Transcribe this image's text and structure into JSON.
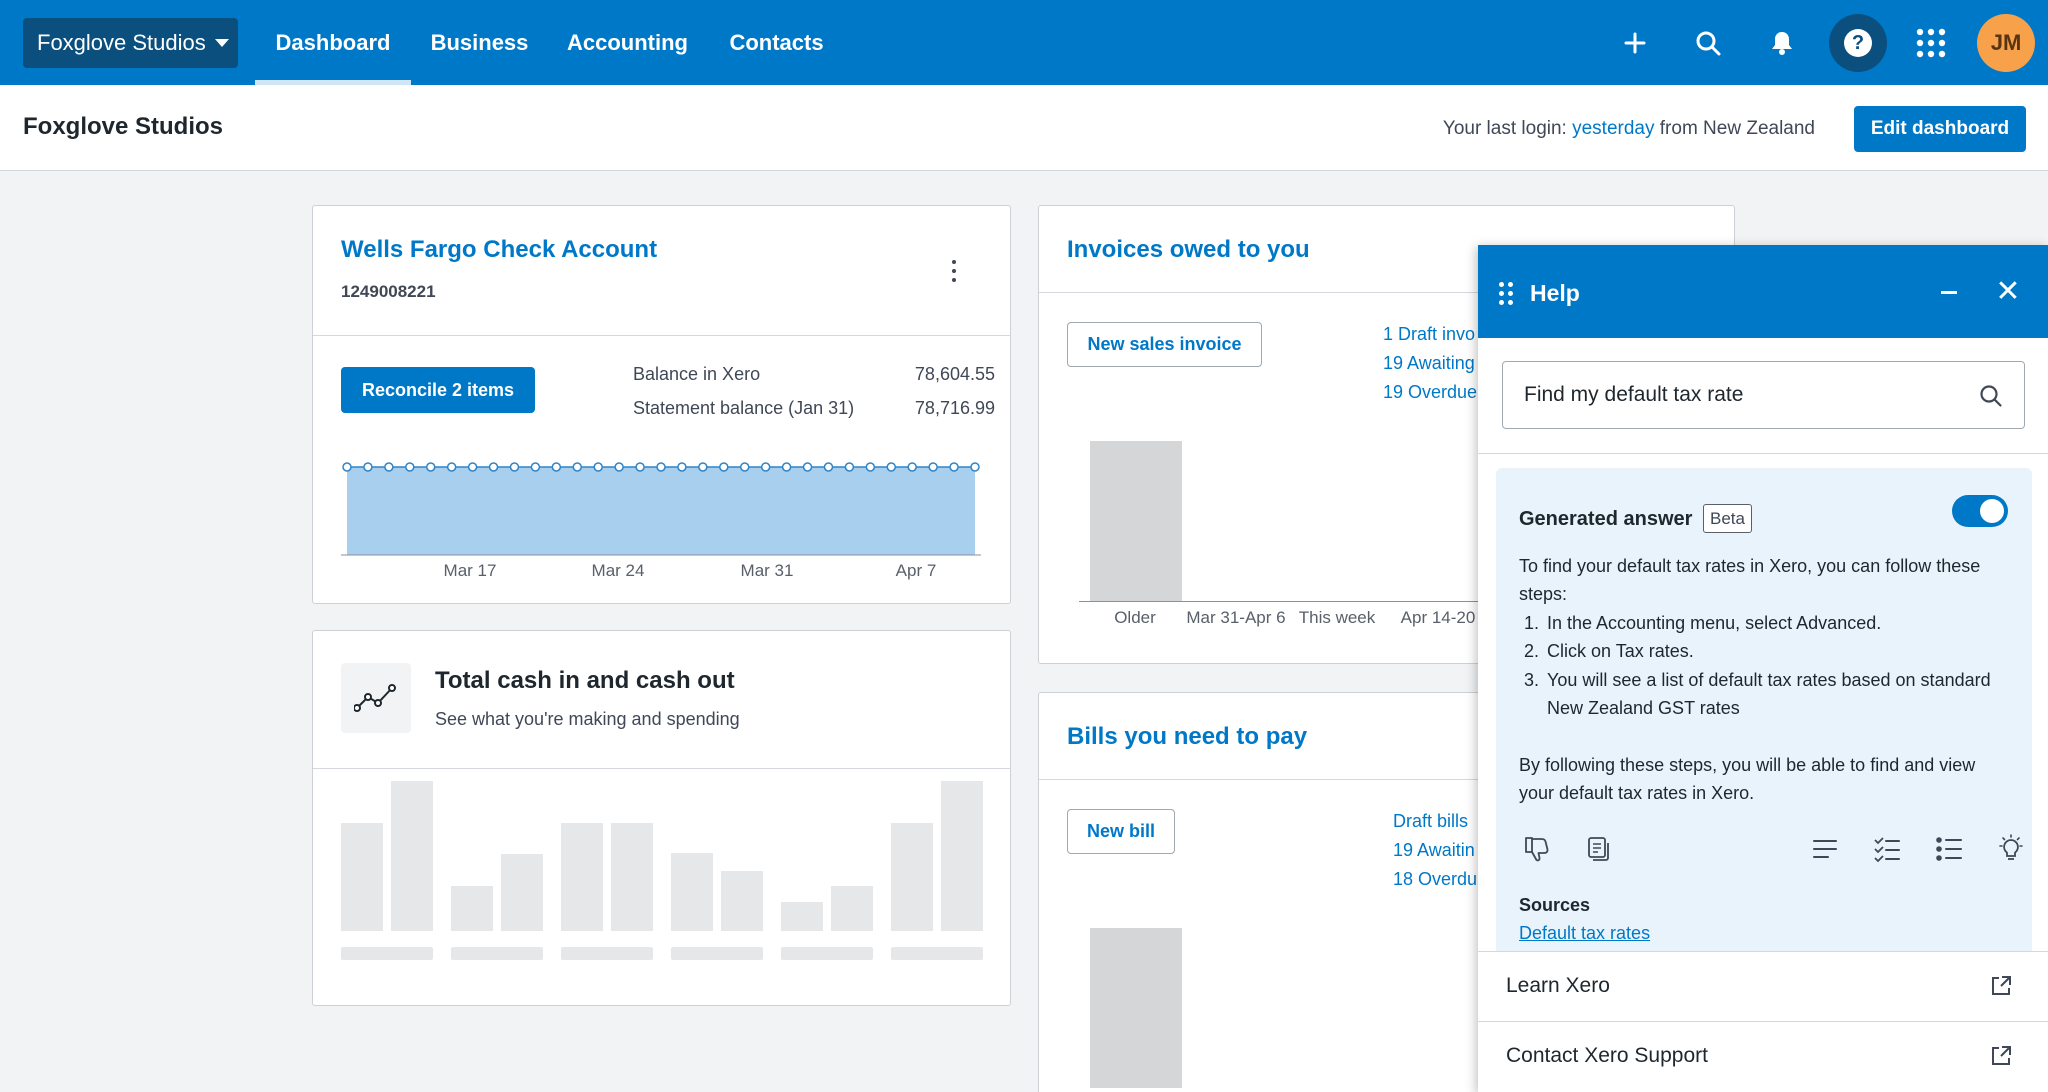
{
  "nav": {
    "org_name": "Foxglove Studios",
    "tabs": [
      "Dashboard",
      "Business",
      "Accounting",
      "Contacts"
    ],
    "active_tab": "Dashboard",
    "help_glyph": "?",
    "avatar_initials": "JM",
    "icons": [
      "plus-icon",
      "search-icon",
      "bell-icon",
      "help-icon",
      "app-grid-icon"
    ]
  },
  "header": {
    "title": "Foxglove Studios",
    "last_login_prefix": "Your last login:",
    "last_login_link": "yesterday",
    "last_login_suffix": "from New Zealand",
    "edit_button": "Edit dashboard"
  },
  "bank_card": {
    "title": "Wells Fargo Check Account",
    "account_number": "1249008221",
    "reconcile_button": "Reconcile 2 items",
    "balance_label": "Balance in Xero",
    "balance_value": "78,604.55",
    "statement_label": "Statement balance (Jan 31)",
    "statement_value": "78,716.99",
    "axis_labels": [
      "Mar 17",
      "Mar 24",
      "Mar 31",
      "Apr 7"
    ]
  },
  "cash_card": {
    "title": "Total cash in and cash out",
    "subtitle": "See what you're making and spending"
  },
  "invoices_card": {
    "title": "Invoices owed to you",
    "new_button": "New sales invoice",
    "links": [
      "1 Draft invo",
      "19 Awaiting",
      "19 Overdue"
    ],
    "axis_labels": [
      "Older",
      "Mar 31-Apr 6",
      "This week",
      "Apr 14-20"
    ]
  },
  "bills_card": {
    "title": "Bills you need to pay",
    "new_button": "New bill",
    "links": [
      "Draft bills",
      "19 Awaitin",
      "18 Overdu"
    ]
  },
  "help": {
    "title": "Help",
    "close_glyph": "✕",
    "search_value": "Find my default tax rate",
    "answer_title": "Generated answer",
    "beta_label": "Beta",
    "toggle_on": true,
    "intro": "To find your default tax rates in Xero, you can follow these steps:",
    "steps": [
      {
        "num": "1.",
        "text": "In the Accounting menu, select Advanced."
      },
      {
        "num": "2.",
        "text": "Click on Tax rates."
      },
      {
        "num": "3.",
        "text": "You will see a list of default tax rates based on standard New Zealand GST rates"
      }
    ],
    "conclusion": "By following these steps, you will be able to find and view your default tax rates in Xero.",
    "answer_icons": [
      "thumbs-down-icon",
      "copy-icon",
      "paragraph-icon",
      "checklist-icon",
      "bullet-list-icon",
      "lightbulb-icon"
    ],
    "sources_title": "Sources",
    "sources_link": "Default tax rates",
    "footer_items": [
      "Learn Xero",
      "Contact Xero Support"
    ]
  },
  "colors": {
    "brand_blue": "#0078c8",
    "dark_navy": "#0b4f7e",
    "avatar_orange": "#f7a24b",
    "chart_fill": "#a8d0ee",
    "bar_gray": "#d5d6d8"
  }
}
